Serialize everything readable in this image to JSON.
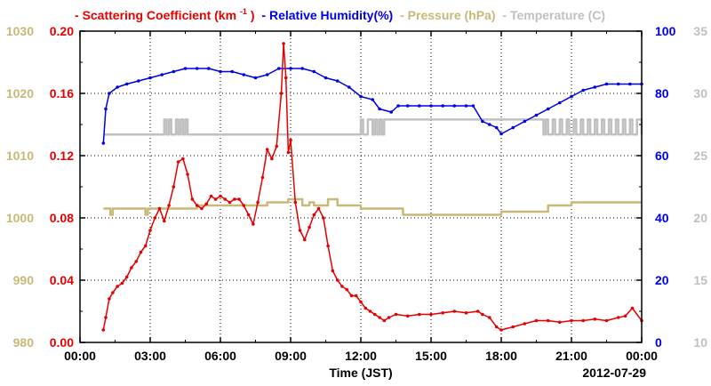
{
  "chart_data": {
    "type": "line",
    "title": "",
    "xlabel": "Time (JST)",
    "date_label": "2012-07-29",
    "x_ticks": [
      "00:00",
      "03:00",
      "06:00",
      "09:00",
      "12:00",
      "15:00",
      "18:00",
      "21:00",
      "00:00"
    ],
    "xlim_hours": [
      0,
      24
    ],
    "grid": true,
    "legend_placement": "top",
    "axes": {
      "scattering": {
        "ylim": [
          0,
          0.2
        ],
        "ticks": [
          "0.00",
          "0.04",
          "0.08",
          "0.12",
          "0.16",
          "0.20"
        ],
        "color": "#e60000"
      },
      "pressure": {
        "ylim": [
          980,
          1030
        ],
        "ticks": [
          "980",
          "990",
          "1000",
          "1010",
          "1020",
          "1030"
        ],
        "color": "#c8b978"
      },
      "humidity": {
        "ylim": [
          0,
          100
        ],
        "ticks": [
          "0",
          "20",
          "40",
          "60",
          "80",
          "100"
        ],
        "color": "#0000e6"
      },
      "temperature": {
        "ylim": [
          10,
          35
        ],
        "ticks": [
          "10",
          "15",
          "20",
          "25",
          "30",
          "35"
        ],
        "color": "#c0c0c0"
      }
    },
    "legend": {
      "scattering_pre": "Scattering Coefficient (km",
      "scattering_sup": "-1",
      "scattering_post": ")",
      "humidity": "Relative Humidity(%)",
      "pressure": "Pressure (hPa)",
      "temperature": "Temperature (C)"
    },
    "series": [
      {
        "key": "scattering",
        "name": "Scattering Coefficient (km-1)",
        "axis": "scattering",
        "color": "#e60000",
        "markers": true,
        "x": [
          1.0,
          1.1,
          1.25,
          1.4,
          1.6,
          1.8,
          2.0,
          2.2,
          2.4,
          2.6,
          2.8,
          3.0,
          3.2,
          3.4,
          3.6,
          3.8,
          4.0,
          4.2,
          4.4,
          4.6,
          4.8,
          5.0,
          5.2,
          5.4,
          5.6,
          5.8,
          6.0,
          6.2,
          6.4,
          6.6,
          6.8,
          7.0,
          7.2,
          7.4,
          7.6,
          7.8,
          8.0,
          8.2,
          8.4,
          8.6,
          8.7,
          8.8,
          8.9,
          9.0,
          9.2,
          9.4,
          9.6,
          9.8,
          10.0,
          10.2,
          10.4,
          10.6,
          10.8,
          11.0,
          11.2,
          11.4,
          11.6,
          11.8,
          12.0,
          12.2,
          12.4,
          12.6,
          12.8,
          13.0,
          13.2,
          13.5,
          14.0,
          14.5,
          15.0,
          15.5,
          16.0,
          16.5,
          17.0,
          17.2,
          17.5,
          17.8,
          18.0,
          18.5,
          19.0,
          19.5,
          20.0,
          20.5,
          21.0,
          21.5,
          22.0,
          22.5,
          23.0,
          23.3,
          23.6,
          24.0
        ],
        "y": [
          0.008,
          0.016,
          0.028,
          0.032,
          0.036,
          0.038,
          0.042,
          0.048,
          0.052,
          0.058,
          0.062,
          0.072,
          0.08,
          0.086,
          0.078,
          0.088,
          0.1,
          0.116,
          0.118,
          0.108,
          0.092,
          0.088,
          0.086,
          0.089,
          0.094,
          0.092,
          0.094,
          0.092,
          0.09,
          0.092,
          0.092,
          0.088,
          0.082,
          0.076,
          0.09,
          0.106,
          0.124,
          0.118,
          0.126,
          0.16,
          0.192,
          0.17,
          0.122,
          0.13,
          0.09,
          0.072,
          0.066,
          0.074,
          0.082,
          0.086,
          0.08,
          0.062,
          0.046,
          0.04,
          0.036,
          0.034,
          0.03,
          0.03,
          0.026,
          0.022,
          0.02,
          0.018,
          0.016,
          0.014,
          0.016,
          0.018,
          0.017,
          0.018,
          0.018,
          0.019,
          0.02,
          0.019,
          0.02,
          0.018,
          0.016,
          0.01,
          0.008,
          0.01,
          0.012,
          0.014,
          0.014,
          0.013,
          0.014,
          0.014,
          0.015,
          0.014,
          0.016,
          0.017,
          0.022,
          0.014
        ]
      },
      {
        "key": "humidity",
        "name": "Relative Humidity(%)",
        "axis": "humidity",
        "color": "#0000e6",
        "markers": true,
        "x": [
          1.0,
          1.1,
          1.25,
          1.6,
          2.0,
          2.5,
          3.0,
          3.5,
          4.0,
          4.5,
          5.0,
          5.5,
          6.0,
          6.5,
          7.0,
          7.5,
          8.0,
          8.5,
          9.0,
          9.5,
          10.0,
          10.5,
          11.0,
          11.5,
          12.0,
          12.5,
          12.8,
          13.3,
          13.6,
          14.0,
          14.5,
          15.0,
          15.5,
          16.0,
          16.5,
          16.8,
          17.2,
          17.5,
          17.8,
          18.0,
          18.5,
          19.0,
          19.5,
          20.0,
          20.5,
          21.0,
          21.5,
          22.0,
          22.5,
          23.0,
          23.5,
          24.0
        ],
        "y": [
          64,
          75,
          80,
          82,
          83,
          84,
          85,
          86,
          87,
          88,
          88,
          88,
          87,
          87,
          86,
          85,
          86,
          88,
          88,
          88,
          87,
          85,
          84,
          82,
          79,
          78,
          75,
          74,
          76,
          76,
          76,
          76,
          76,
          76,
          76,
          76,
          71,
          70,
          69,
          67,
          69,
          71,
          73,
          75,
          77,
          79,
          81,
          82,
          83,
          83,
          83,
          83
        ]
      },
      {
        "key": "pressure",
        "name": "Pressure (hPa)",
        "axis": "pressure",
        "color": "#c8b978",
        "markers": false,
        "step": true,
        "x": [
          1.0,
          1.2,
          1.3,
          1.4,
          1.5,
          1.6,
          2.0,
          2.7,
          2.8,
          2.9,
          3.0,
          4.0,
          5.0,
          5.5,
          6.0,
          6.5,
          7.0,
          7.5,
          8.0,
          8.5,
          8.9,
          9.0,
          9.5,
          9.8,
          10.0,
          10.2,
          10.5,
          10.6,
          11.0,
          12.0,
          13.0,
          13.5,
          13.8,
          14.5,
          15.0,
          16.0,
          17.0,
          18.0,
          19.0,
          19.5,
          20.0,
          21.0,
          22.0,
          23.0,
          24.0
        ],
        "y": [
          1001.5,
          1001.5,
          1000.5,
          1001.5,
          1001.5,
          1001.5,
          1001.5,
          1001.5,
          1000.5,
          1001.5,
          1001.5,
          1001.5,
          1002,
          1002,
          1002,
          1002,
          1002,
          1002,
          1002.5,
          1002.5,
          1003,
          1003,
          1002,
          1002.5,
          1002,
          1002,
          1002,
          1003,
          1002,
          1001.5,
          1001.5,
          1001.5,
          1000.5,
          1000.5,
          1000.5,
          1000.5,
          1000.5,
          1001,
          1001,
          1001,
          1002,
          1002.5,
          1002.5,
          1002.5,
          1002.5
        ]
      },
      {
        "key": "temperature",
        "name": "Temperature (C)",
        "axis": "temperature",
        "color": "#c0c0c0",
        "markers": false,
        "step": true,
        "x": [
          1.0,
          3.5,
          3.6,
          3.7,
          3.8,
          3.9,
          4.0,
          4.1,
          4.2,
          4.3,
          4.4,
          4.5,
          4.6,
          5.0,
          11.9,
          12.0,
          12.1,
          12.2,
          12.3,
          12.5,
          12.6,
          12.7,
          12.8,
          12.9,
          13.0,
          13.1,
          13.2,
          14.0,
          18.0,
          19.7,
          19.8,
          19.9,
          20.0,
          20.2,
          20.3,
          20.5,
          20.6,
          20.8,
          20.9,
          21.1,
          21.2,
          21.4,
          21.5,
          21.7,
          21.8,
          22.0,
          22.1,
          22.3,
          22.4,
          22.6,
          22.7,
          22.9,
          23.0,
          23.2,
          23.3,
          23.5,
          23.6,
          23.8,
          24.0
        ],
        "y": [
          26.7,
          26.7,
          27.9,
          26.7,
          27.9,
          26.7,
          26.7,
          27.9,
          26.7,
          27.9,
          26.7,
          27.9,
          26.7,
          26.7,
          26.7,
          27.9,
          26.7,
          26.7,
          27.9,
          26.7,
          27.9,
          26.7,
          27.9,
          26.7,
          27.9,
          27.9,
          27.9,
          27.9,
          27.9,
          27.9,
          26.7,
          27.9,
          26.7,
          27.9,
          26.7,
          27.9,
          26.7,
          27.9,
          26.7,
          27.9,
          26.7,
          27.9,
          26.7,
          27.9,
          26.7,
          27.9,
          26.7,
          27.9,
          26.7,
          27.9,
          26.7,
          27.9,
          26.7,
          27.9,
          26.7,
          27.9,
          26.7,
          27.9,
          26.7
        ]
      }
    ]
  }
}
